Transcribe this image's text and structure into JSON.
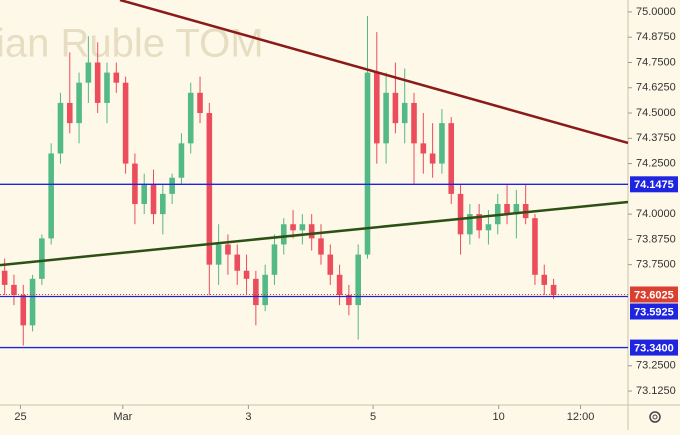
{
  "chart_data": {
    "type": "candlestick",
    "title": "ian Ruble TOM",
    "up_color": "#53b987",
    "down_color": "#eb4d5c",
    "xlim": [
      -0.5,
      67
    ],
    "xticks": [
      {
        "value": 1.7,
        "label": "25"
      },
      {
        "value": 12.7,
        "label": "Mar"
      },
      {
        "value": 26.2,
        "label": "3"
      },
      {
        "value": 39.6,
        "label": "5"
      },
      {
        "value": 53.1,
        "label": "10"
      },
      {
        "value": 61.9,
        "label": "12:00"
      }
    ],
    "ylim": [
      73.056,
      75.059
    ],
    "yticks": [
      {
        "value": 75.0,
        "label": "75.0000"
      },
      {
        "value": 74.875,
        "label": "74.8750"
      },
      {
        "value": 74.75,
        "label": "74.7500"
      },
      {
        "value": 74.625,
        "label": "74.6250"
      },
      {
        "value": 74.5,
        "label": "74.5000"
      },
      {
        "value": 74.375,
        "label": "74.3750"
      },
      {
        "value": 74.25,
        "label": "74.2500"
      },
      {
        "value": 74.0,
        "label": "74.0000"
      },
      {
        "value": 73.875,
        "label": "73.8750"
      },
      {
        "value": 73.75,
        "label": "73.7500"
      },
      {
        "value": 73.25,
        "label": "73.2500"
      },
      {
        "value": 73.125,
        "label": "73.1250"
      }
    ],
    "open": [
      73.72,
      73.65,
      73.6,
      73.45,
      73.68,
      73.88,
      74.3,
      74.55,
      74.45,
      74.65,
      74.75,
      74.55,
      74.7,
      74.65,
      74.25,
      74.05,
      74.15,
      74.0,
      74.1,
      74.18,
      74.35,
      74.6,
      74.5,
      73.75,
      73.85,
      73.8,
      73.72,
      73.68,
      73.55,
      73.7,
      73.85,
      73.95,
      73.92,
      73.95,
      73.88,
      73.8,
      73.7,
      73.6,
      73.55,
      73.8,
      74.7,
      74.35,
      74.6,
      74.45,
      74.55,
      74.35,
      74.3,
      74.25,
      74.45,
      74.1,
      73.9,
      74.0,
      73.92,
      73.95,
      74.05,
      74.0,
      74.05,
      73.98,
      73.7,
      73.65
    ],
    "high": [
      73.78,
      73.7,
      73.65,
      73.7,
      73.9,
      74.35,
      74.6,
      74.8,
      74.7,
      74.88,
      74.85,
      74.75,
      74.75,
      74.68,
      74.3,
      74.2,
      74.22,
      74.15,
      74.2,
      74.4,
      74.65,
      74.68,
      74.55,
      73.95,
      73.9,
      73.85,
      73.8,
      73.72,
      73.75,
      73.9,
      73.98,
      74.02,
      74.0,
      74.0,
      73.95,
      73.85,
      73.75,
      73.65,
      73.85,
      74.98,
      74.9,
      74.7,
      74.75,
      74.72,
      74.6,
      74.5,
      74.45,
      74.52,
      74.48,
      74.15,
      74.05,
      74.05,
      74.02,
      74.1,
      74.15,
      74.12,
      74.15,
      74.0,
      73.75,
      73.68
    ],
    "low": [
      73.6,
      73.55,
      73.35,
      73.42,
      73.65,
      73.85,
      74.25,
      74.4,
      74.35,
      74.55,
      74.5,
      74.45,
      74.6,
      74.2,
      73.95,
      74.0,
      73.95,
      73.9,
      74.05,
      74.15,
      74.3,
      74.45,
      73.6,
      73.65,
      73.7,
      73.65,
      73.6,
      73.45,
      73.52,
      73.65,
      73.8,
      73.88,
      73.85,
      73.82,
      73.75,
      73.65,
      73.55,
      73.5,
      73.38,
      73.78,
      74.25,
      74.25,
      74.4,
      74.35,
      74.15,
      74.2,
      74.18,
      74.2,
      74.05,
      73.8,
      73.85,
      73.88,
      73.85,
      73.9,
      73.95,
      73.88,
      73.95,
      73.65,
      73.6,
      73.58
    ],
    "close": [
      73.65,
      73.6,
      73.45,
      73.68,
      73.88,
      74.3,
      74.55,
      74.45,
      74.65,
      74.75,
      74.55,
      74.7,
      74.65,
      74.25,
      74.05,
      74.15,
      74.0,
      74.1,
      74.18,
      74.35,
      74.6,
      74.5,
      73.75,
      73.85,
      73.8,
      73.72,
      73.68,
      73.55,
      73.7,
      73.85,
      73.95,
      73.92,
      73.95,
      73.88,
      73.8,
      73.7,
      73.6,
      73.55,
      73.8,
      74.7,
      74.35,
      74.6,
      74.45,
      74.55,
      74.35,
      74.3,
      74.25,
      74.45,
      74.1,
      73.9,
      74.0,
      73.92,
      73.95,
      74.05,
      74.0,
      74.05,
      73.98,
      73.7,
      73.65,
      73.6
    ],
    "hlines": [
      {
        "value": 74.1475,
        "color": "#1f24e0",
        "dash": false
      },
      {
        "value": 73.6025,
        "color": "#d9402f",
        "dash": true
      },
      {
        "value": 73.5925,
        "color": "#1f24e0",
        "dash": false
      },
      {
        "value": 73.34,
        "label": "73.3400",
        "color": "#1f24e0",
        "dash": false
      }
    ],
    "trendlines": [
      {
        "x": [
          12.4,
          67
        ],
        "y": [
          75.059,
          74.352
        ],
        "color": "#8b1a1a"
      },
      {
        "x": [
          -0.5,
          67
        ],
        "y": [
          73.748,
          74.06
        ],
        "color": "#2d5016"
      }
    ]
  }
}
